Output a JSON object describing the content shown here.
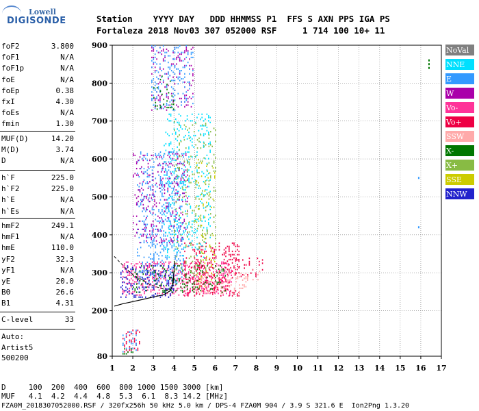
{
  "logo": {
    "top": "Lowell",
    "main": "DIGISONDE"
  },
  "header": {
    "row1": "Station    YYYY DAY   DDD HHMMSS P1  FFS S AXN PPS IGA PS",
    "row2": "Fortaleza 2018 Nov03 307 052000 RSF     1 714 100 10+ 11"
  },
  "params": {
    "group1": [
      {
        "name": "foF2",
        "value": "3.800"
      },
      {
        "name": "foF1",
        "value": "N/A"
      },
      {
        "name": "foF1p",
        "value": "N/A"
      },
      {
        "name": "foE",
        "value": "N/A"
      },
      {
        "name": "foEp",
        "value": "0.38"
      },
      {
        "name": "fxI",
        "value": "4.30"
      },
      {
        "name": "foEs",
        "value": "N/A"
      },
      {
        "name": "fmin",
        "value": "1.30"
      }
    ],
    "group2": [
      {
        "name": "MUF(D)",
        "value": "14.20"
      },
      {
        "name": "M(D)",
        "value": "3.74"
      },
      {
        "name": "D",
        "value": "N/A"
      }
    ],
    "group3": [
      {
        "name": "h`F",
        "value": "225.0"
      },
      {
        "name": "h`F2",
        "value": "225.0"
      },
      {
        "name": "h`E",
        "value": "N/A"
      },
      {
        "name": "h`Es",
        "value": "N/A"
      }
    ],
    "group4": [
      {
        "name": "hmF2",
        "value": "249.1"
      },
      {
        "name": "hmF1",
        "value": "N/A"
      },
      {
        "name": "hmE",
        "value": "110.0"
      },
      {
        "name": "yF2",
        "value": "32.3"
      },
      {
        "name": "yF1",
        "value": "N/A"
      },
      {
        "name": "yE",
        "value": "20.0"
      },
      {
        "name": "B0",
        "value": "26.6"
      },
      {
        "name": "B1",
        "value": "4.31"
      }
    ],
    "clevel": {
      "name": "C-level",
      "value": "33"
    },
    "auto": [
      "Auto:",
      "Artist5",
      "500200"
    ]
  },
  "legend": [
    {
      "label": "NoVal",
      "bg": "#808080",
      "fg": "#ffffff"
    },
    {
      "label": "NNE",
      "bg": "#00e0ff",
      "fg": "#ffffff"
    },
    {
      "label": "E",
      "bg": "#3399ff",
      "fg": "#ffffff"
    },
    {
      "label": "W",
      "bg": "#aa00aa",
      "fg": "#ffffff"
    },
    {
      "label": "Vo-",
      "bg": "#ff3399",
      "fg": "#ffffff"
    },
    {
      "label": "Vo+",
      "bg": "#ee0044",
      "fg": "#ffffff"
    },
    {
      "label": "SSW",
      "bg": "#ffaaaa",
      "fg": "#ffffff"
    },
    {
      "label": "X-",
      "bg": "#007700",
      "fg": "#ffffff"
    },
    {
      "label": "X+",
      "bg": "#88bb44",
      "fg": "#ffffff"
    },
    {
      "label": "SSE",
      "bg": "#cccc00",
      "fg": "#ffffff"
    },
    {
      "label": "NNW",
      "bg": "#2222cc",
      "fg": "#ffffff"
    }
  ],
  "footer": {
    "row1": "D     100  200  400  600  800 1000 1500 3000 [km]",
    "row2": "MUF   4.1  4.2  4.4  4.8  5.3  6.1  8.3 14.2 [MHz]",
    "row3": "FZA0M_2018307052000.RSF / 320fx256h 50 kHz 5.0 km / DPS-4 FZA0M 904 / 3.9 S 321.6 E  Ion2Png 1.3.20"
  },
  "chart_data": {
    "type": "scatter",
    "xlim": [
      1,
      17
    ],
    "ylim": [
      80,
      900
    ],
    "xticks": [
      1,
      2,
      3,
      4,
      5,
      6,
      7,
      8,
      9,
      10,
      11,
      12,
      13,
      14,
      15,
      16,
      17
    ],
    "yticks": [
      80,
      200,
      300,
      400,
      500,
      600,
      700,
      800,
      900
    ],
    "grid": true,
    "legend_position": "right",
    "regions": [
      {
        "color": "#3399ff",
        "x": [
          2.2,
          4.5
        ],
        "y": [
          270,
          620
        ],
        "density": 0.35
      },
      {
        "color": "#aa00aa",
        "x": [
          2.0,
          4.7
        ],
        "y": [
          380,
          620
        ],
        "density": 0.25
      },
      {
        "color": "#ff3399",
        "x": [
          1.5,
          6.8
        ],
        "y": [
          240,
          330
        ],
        "density": 0.5
      },
      {
        "color": "#ee0044",
        "x": [
          4.5,
          7.2
        ],
        "y": [
          240,
          380
        ],
        "density": 0.4
      },
      {
        "color": "#ffaaaa",
        "x": [
          5.0,
          7.6
        ],
        "y": [
          245,
          300
        ],
        "density": 0.4
      },
      {
        "color": "#2222cc",
        "x": [
          1.4,
          4.0
        ],
        "y": [
          235,
          320
        ],
        "density": 0.5
      },
      {
        "color": "#007700",
        "x": [
          2.0,
          6.5
        ],
        "y": [
          250,
          320
        ],
        "density": 0.25
      },
      {
        "color": "#00e0ff",
        "x": [
          3.5,
          5.8
        ],
        "y": [
          340,
          720
        ],
        "density": 0.25
      },
      {
        "color": "#88bb44",
        "x": [
          4.0,
          6.0
        ],
        "y": [
          300,
          700
        ],
        "density": 0.15
      },
      {
        "color": "#cccc00",
        "x": [
          5.0,
          6.0
        ],
        "y": [
          260,
          600
        ],
        "density": 0.12
      },
      {
        "color": "#aa00aa",
        "x": [
          2.9,
          4.9
        ],
        "y": [
          730,
          900
        ],
        "density": 0.25
      },
      {
        "color": "#3399ff",
        "x": [
          2.9,
          4.9
        ],
        "y": [
          730,
          900
        ],
        "density": 0.25
      },
      {
        "color": "#007700",
        "x": [
          3.0,
          4.0
        ],
        "y": [
          730,
          820
        ],
        "density": 0.15
      },
      {
        "color": "#ee0044",
        "x": [
          1.5,
          2.3
        ],
        "y": [
          90,
          150
        ],
        "density": 0.4
      },
      {
        "color": "#3399ff",
        "x": [
          1.5,
          2.2
        ],
        "y": [
          90,
          150
        ],
        "density": 0.4
      },
      {
        "color": "#007700",
        "x": [
          1.5,
          2.0
        ],
        "y": [
          85,
          110
        ],
        "density": 0.5
      },
      {
        "color": "#ee0044",
        "x": [
          7.0,
          8.3
        ],
        "y": [
          290,
          340
        ],
        "density": 0.25
      },
      {
        "color": "#ffaaaa",
        "x": [
          7.5,
          8.2
        ],
        "y": [
          280,
          310
        ],
        "density": 0.35
      }
    ],
    "isolated_points": [
      {
        "x": 16.4,
        "y": 840,
        "color": "#007700"
      },
      {
        "x": 16.4,
        "y": 860,
        "color": "#007700"
      },
      {
        "x": 16.4,
        "y": 850,
        "color": "#007700"
      },
      {
        "x": 15.9,
        "y": 550,
        "color": "#3399ff"
      },
      {
        "x": 15.9,
        "y": 420,
        "color": "#3399ff"
      }
    ],
    "profile_solid": [
      [
        1.1,
        212
      ],
      [
        1.5,
        218
      ],
      [
        2.0,
        224
      ],
      [
        2.5,
        230
      ],
      [
        3.0,
        236
      ],
      [
        3.5,
        242
      ],
      [
        3.8,
        252
      ],
      [
        3.95,
        268
      ],
      [
        4.0,
        300
      ],
      [
        4.03,
        330
      ]
    ],
    "profile_dashed": [
      [
        1.1,
        343
      ],
      [
        1.6,
        315
      ],
      [
        2.0,
        295
      ],
      [
        2.4,
        283
      ],
      [
        2.8,
        270
      ],
      [
        3.2,
        262
      ],
      [
        3.8,
        252
      ]
    ]
  }
}
